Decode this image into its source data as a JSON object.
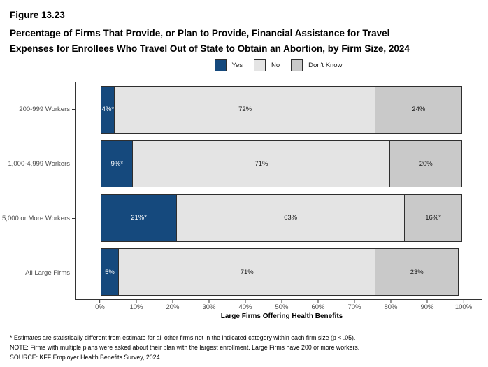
{
  "figure": {
    "number": "Figure 13.23",
    "title_lines": [
      "Percentage of Firms That Provide, or Plan to Provide, Financial Assistance for Travel",
      "Expenses for Enrollees Who Travel Out of State to Obtain an Abortion, by Firm Size, 2024"
    ]
  },
  "legend": [
    {
      "label": "Yes",
      "color": "#15497D"
    },
    {
      "label": "No",
      "color": "#E4E4E4"
    },
    {
      "label": "Don't Know",
      "color": "#C9C9C9"
    }
  ],
  "chart_data": {
    "type": "bar",
    "stacked": true,
    "orientation": "horizontal",
    "title": "Percentage of Firms That Provide, or Plan to Provide, Financial Assistance for Travel Expenses for Enrollees Who Travel Out of State to Obtain an Abortion, by Firm Size, 2024",
    "categories": [
      "200-999 Workers",
      "1,000-4,999 Workers",
      "5,000 or More Workers",
      "All Large Firms"
    ],
    "series": [
      {
        "name": "Yes",
        "color": "#15497D",
        "text_color": "#ffffff",
        "values": [
          4,
          9,
          21,
          5
        ],
        "labels": [
          "4%*",
          "9%*",
          "21%*",
          "5%"
        ]
      },
      {
        "name": "No",
        "color": "#E4E4E4",
        "text_color": "#1a1a1a",
        "values": [
          72,
          71,
          63,
          71
        ],
        "labels": [
          "72%",
          "71%",
          "63%",
          "71%"
        ]
      },
      {
        "name": "Don't Know",
        "color": "#C9C9C9",
        "text_color": "#1a1a1a",
        "values": [
          24,
          20,
          16,
          23
        ],
        "labels": [
          "24%",
          "20%",
          "16%*",
          "23%"
        ]
      }
    ],
    "xlabel": "Large Firms Offering Health Benefits",
    "ylabel": "",
    "xlim": [
      0,
      100
    ],
    "x_ticks": [
      "0%",
      "10%",
      "20%",
      "30%",
      "40%",
      "50%",
      "60%",
      "70%",
      "80%",
      "90%",
      "100%"
    ],
    "grid": false,
    "legend_position": "top-center"
  },
  "footnotes": [
    "* Estimates are statistically different from estimate for all other firms not in the indicated category within each firm size (p < .05).",
    "NOTE: Firms with multiple plans were asked about their plan with the largest enrollment.  Large Firms have 200 or more workers.",
    "SOURCE: KFF Employer Health Benefits Survey, 2024"
  ]
}
